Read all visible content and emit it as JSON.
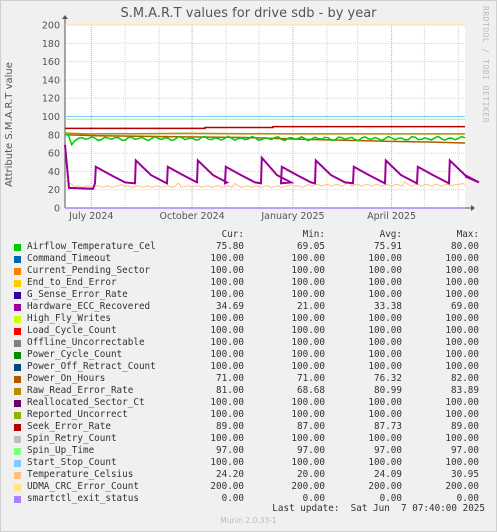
{
  "chart_data": {
    "type": "line",
    "title": "S.M.A.R.T values for drive sdb - by year",
    "ylabel": "Attribute S.M.A.R.T value",
    "xlabel": "",
    "ylim": [
      0,
      200
    ],
    "yticks": [
      0,
      20,
      40,
      60,
      80,
      100,
      120,
      140,
      160,
      180,
      200
    ],
    "xlim": [
      "2024-06-07",
      "2025-06-07"
    ],
    "xticks": [
      {
        "label": "July 2024",
        "date": "2024-07-01"
      },
      {
        "label": "October 2024",
        "date": "2024-10-01"
      },
      {
        "label": "January 2025",
        "date": "2025-01-01"
      },
      {
        "label": "April 2025",
        "date": "2025-04-01"
      }
    ],
    "grid": true,
    "series": [
      {
        "name": "Airflow_Temperature_Cel",
        "color": "#00cc00",
        "cur": "75.80",
        "min": "69.05",
        "avg": "75.91",
        "max": "80.00"
      },
      {
        "name": "Command_Timeout",
        "color": "#0066b3",
        "cur": "100.00",
        "min": "100.00",
        "avg": "100.00",
        "max": "100.00"
      },
      {
        "name": "Current_Pending_Sector",
        "color": "#ff8000",
        "cur": "100.00",
        "min": "100.00",
        "avg": "100.00",
        "max": "100.00"
      },
      {
        "name": "End_to_End_Error",
        "color": "#ffcc00",
        "cur": "100.00",
        "min": "100.00",
        "avg": "100.00",
        "max": "100.00"
      },
      {
        "name": "G_Sense_Error_Rate",
        "color": "#330099",
        "cur": "100.00",
        "min": "100.00",
        "avg": "100.00",
        "max": "100.00"
      },
      {
        "name": "Hardware_ECC_Recovered",
        "color": "#990099",
        "cur": "34.69",
        "min": "21.00",
        "avg": "33.38",
        "max": "69.00"
      },
      {
        "name": "High_Fly_Writes",
        "color": "#ccff00",
        "cur": "100.00",
        "min": "100.00",
        "avg": "100.00",
        "max": "100.00"
      },
      {
        "name": "Load_Cycle_Count",
        "color": "#ff0000",
        "cur": "100.00",
        "min": "100.00",
        "avg": "100.00",
        "max": "100.00"
      },
      {
        "name": "Offline_Uncorrectable",
        "color": "#808080",
        "cur": "100.00",
        "min": "100.00",
        "avg": "100.00",
        "max": "100.00"
      },
      {
        "name": "Power_Cycle_Count",
        "color": "#008f00",
        "cur": "100.00",
        "min": "100.00",
        "avg": "100.00",
        "max": "100.00"
      },
      {
        "name": "Power_Off_Retract_Count",
        "color": "#00487d",
        "cur": "100.00",
        "min": "100.00",
        "avg": "100.00",
        "max": "100.00"
      },
      {
        "name": "Power_On_Hours",
        "color": "#b35a00",
        "cur": "71.00",
        "min": "71.00",
        "avg": "76.32",
        "max": "82.00"
      },
      {
        "name": "Raw_Read_Error_Rate",
        "color": "#b38f00",
        "cur": "81.00",
        "min": "68.68",
        "avg": "80.99",
        "max": "83.89"
      },
      {
        "name": "Reallocated_Sector_Ct",
        "color": "#6b006b",
        "cur": "100.00",
        "min": "100.00",
        "avg": "100.00",
        "max": "100.00"
      },
      {
        "name": "Reported_Uncorrect",
        "color": "#8fb300",
        "cur": "100.00",
        "min": "100.00",
        "avg": "100.00",
        "max": "100.00"
      },
      {
        "name": "Seek_Error_Rate",
        "color": "#b30000",
        "cur": "89.00",
        "min": "87.00",
        "avg": "87.73",
        "max": "89.00"
      },
      {
        "name": "Spin_Retry_Count",
        "color": "#bebebe",
        "cur": "100.00",
        "min": "100.00",
        "avg": "100.00",
        "max": "100.00"
      },
      {
        "name": "Spin_Up_Time",
        "color": "#80ff80",
        "cur": "97.00",
        "min": "97.00",
        "avg": "97.00",
        "max": "97.00"
      },
      {
        "name": "Start_Stop_Count",
        "color": "#80c9ff",
        "cur": "100.00",
        "min": "100.00",
        "avg": "100.00",
        "max": "100.00"
      },
      {
        "name": "Temperature_Celsius",
        "color": "#ffc080",
        "cur": "24.20",
        "min": "20.00",
        "avg": "24.09",
        "max": "30.95"
      },
      {
        "name": "UDMA_CRC_Error_Count",
        "color": "#ffe680",
        "cur": "200.00",
        "min": "200.00",
        "avg": "200.00",
        "max": "200.00"
      },
      {
        "name": "smartctl_exit_status",
        "color": "#aa80ff",
        "cur": "0.00",
        "min": "0.00",
        "avg": "0.00",
        "max": "0.00"
      }
    ]
  },
  "legend_header": {
    "cur": "Cur:",
    "min": "Min:",
    "avg": "Avg:",
    "max": "Max:"
  },
  "side_label": "RRDTOOL / TOBI OETIKER",
  "last_update": "Last update:  Sat Jun  7 07:40:00 2025",
  "footer": "Munin 2.0.33-1"
}
